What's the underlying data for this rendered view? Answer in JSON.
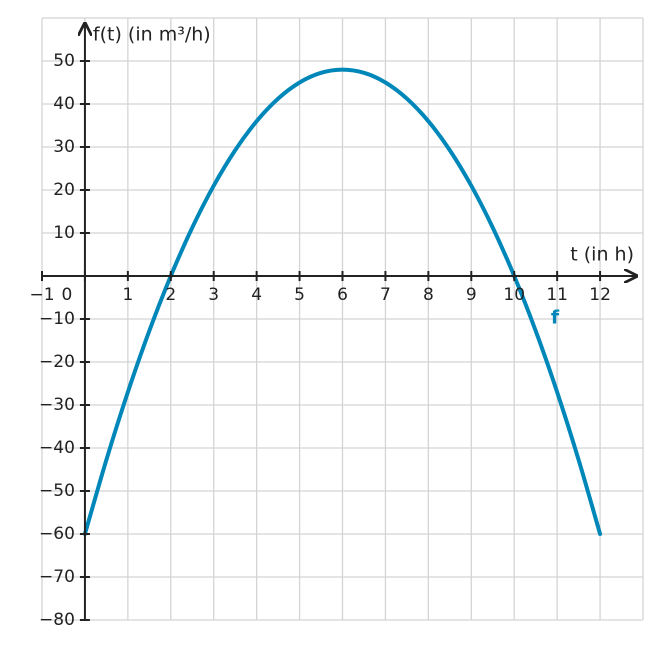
{
  "chart_data": {
    "type": "line",
    "x_label": "t (in h)",
    "y_label": "f(t) (in m³/h)",
    "x": [
      0,
      0.5,
      1,
      1.5,
      2,
      2.5,
      3,
      3.5,
      4,
      4.5,
      5,
      5.5,
      6,
      6.5,
      7,
      7.5,
      8,
      8.5,
      9,
      9.5,
      10,
      10.5,
      11,
      11.5,
      12
    ],
    "series": [
      {
        "name": "f",
        "color": "#0087b9",
        "values": [
          -60,
          -42.75,
          -27,
          -12.75,
          0,
          11.25,
          21,
          29.25,
          36,
          41.25,
          45,
          47.25,
          48,
          47.25,
          45,
          41.25,
          36,
          29.25,
          21,
          11.25,
          0,
          -12.75,
          -27,
          -42.75,
          -60
        ]
      }
    ],
    "xlim": [
      -1,
      13
    ],
    "ylim": [
      -80,
      60
    ],
    "xticks": [
      {
        "value": -1,
        "label": "−1"
      },
      0,
      1,
      2,
      3,
      4,
      5,
      6,
      7,
      8,
      9,
      10,
      11,
      12
    ],
    "yticks": [
      {
        "value": -80,
        "label": "−80"
      },
      {
        "value": -70,
        "label": "−70"
      },
      {
        "value": -60,
        "label": "−60"
      },
      {
        "value": -50,
        "label": "−50"
      },
      {
        "value": -40,
        "label": "−40"
      },
      {
        "value": -30,
        "label": "−30"
      },
      {
        "value": -20,
        "label": "−20"
      },
      {
        "value": -10,
        "label": "−10"
      },
      10,
      20,
      30,
      40,
      50
    ],
    "grid": true
  }
}
